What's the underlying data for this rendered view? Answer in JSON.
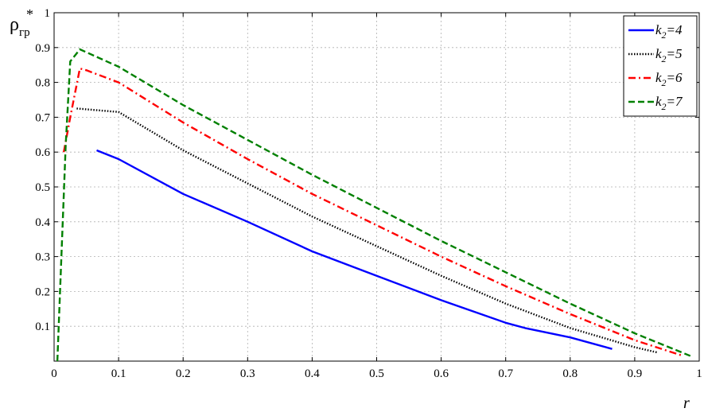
{
  "chart_data": {
    "type": "line",
    "xlabel": "r",
    "ylabel": {
      "main": "ρ",
      "sub": "гр",
      "sup": "*"
    },
    "xlim": [
      0,
      1
    ],
    "ylim": [
      0,
      1
    ],
    "xticks": [
      "0",
      "0.1",
      "0.2",
      "0.3",
      "0.4",
      "0.5",
      "0.6",
      "0.7",
      "0.8",
      "0.9",
      "1"
    ],
    "yticks": [
      "0.1",
      "0.2",
      "0.3",
      "0.4",
      "0.5",
      "0.6",
      "0.7",
      "0.8",
      "0.9",
      "1"
    ],
    "grid": true,
    "legend_position": "top-right",
    "series": [
      {
        "name": "k2=4",
        "label_main": "k",
        "label_sub": "2",
        "label_rest": "=4",
        "color": "#0000ff",
        "style": "solid",
        "points": [
          [
            0.066,
            0.605
          ],
          [
            0.1,
            0.58
          ],
          [
            0.2,
            0.48
          ],
          [
            0.3,
            0.4
          ],
          [
            0.4,
            0.315
          ],
          [
            0.5,
            0.245
          ],
          [
            0.6,
            0.175
          ],
          [
            0.7,
            0.11
          ],
          [
            0.73,
            0.095
          ],
          [
            0.8,
            0.068
          ],
          [
            0.865,
            0.035
          ]
        ]
      },
      {
        "name": "k2=5",
        "label_main": "k",
        "label_sub": "2",
        "label_rest": "=5",
        "color": "#000000",
        "style": "dotted",
        "points": [
          [
            0.035,
            0.725
          ],
          [
            0.1,
            0.715
          ],
          [
            0.2,
            0.605
          ],
          [
            0.3,
            0.51
          ],
          [
            0.4,
            0.415
          ],
          [
            0.5,
            0.33
          ],
          [
            0.6,
            0.245
          ],
          [
            0.7,
            0.165
          ],
          [
            0.8,
            0.095
          ],
          [
            0.9,
            0.04
          ],
          [
            0.935,
            0.025
          ]
        ]
      },
      {
        "name": "k2=6",
        "label_main": "k",
        "label_sub": "2",
        "label_rest": "=6",
        "color": "#ff0000",
        "style": "dashdot",
        "points": [
          [
            0.015,
            0.6
          ],
          [
            0.025,
            0.7
          ],
          [
            0.04,
            0.84
          ],
          [
            0.05,
            0.835
          ],
          [
            0.1,
            0.8
          ],
          [
            0.2,
            0.685
          ],
          [
            0.3,
            0.58
          ],
          [
            0.4,
            0.48
          ],
          [
            0.5,
            0.39
          ],
          [
            0.6,
            0.3
          ],
          [
            0.7,
            0.215
          ],
          [
            0.8,
            0.135
          ],
          [
            0.9,
            0.06
          ],
          [
            0.975,
            0.015
          ]
        ]
      },
      {
        "name": "k2=7",
        "label_main": "k",
        "label_sub": "2",
        "label_rest": "=7",
        "color": "#008000",
        "style": "dashed",
        "points": [
          [
            0.005,
            0.0
          ],
          [
            0.018,
            0.62
          ],
          [
            0.025,
            0.86
          ],
          [
            0.04,
            0.895
          ],
          [
            0.1,
            0.845
          ],
          [
            0.2,
            0.735
          ],
          [
            0.3,
            0.635
          ],
          [
            0.4,
            0.535
          ],
          [
            0.5,
            0.44
          ],
          [
            0.6,
            0.345
          ],
          [
            0.7,
            0.255
          ],
          [
            0.8,
            0.165
          ],
          [
            0.9,
            0.08
          ],
          [
            0.99,
            0.012
          ]
        ]
      }
    ]
  }
}
